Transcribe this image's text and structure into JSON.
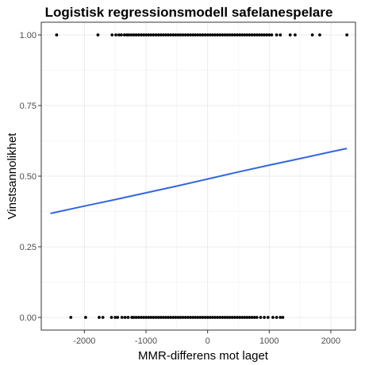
{
  "chart_data": {
    "type": "scatter",
    "title": "Logistisk regressionsmodell safelanespelare",
    "xlabel": "MMR-differens mot laget",
    "ylabel": "Vinstsannolikhet",
    "xlim": [
      -2700,
      2400
    ],
    "ylim": [
      -0.045,
      1.045
    ],
    "x_ticks": [
      -2000,
      -1000,
      0,
      1000,
      2000
    ],
    "x_tick_labels": [
      "-2000",
      "-1000",
      "0",
      "1000",
      "2000"
    ],
    "y_ticks": [
      0,
      0.25,
      0.5,
      0.75,
      1
    ],
    "y_tick_labels": [
      "0.00",
      "0.25",
      "0.50",
      "0.75",
      "1.00"
    ],
    "grid": true,
    "series": [
      {
        "type": "scatter",
        "color": "#000000",
        "points": [
          {
            "x": -2450,
            "y": 1
          },
          {
            "x": -1780,
            "y": 1
          },
          {
            "x": -1550,
            "y": 1
          },
          {
            "x": -1490,
            "y": 1
          },
          {
            "x": -1440,
            "y": 1
          },
          {
            "x": -1400,
            "y": 1
          },
          {
            "x": -1350,
            "y": 1
          },
          {
            "x": -1310,
            "y": 1
          },
          {
            "x": -1280,
            "y": 1
          },
          {
            "x": -1240,
            "y": 1
          },
          {
            "x": -1200,
            "y": 1
          },
          {
            "x": -1160,
            "y": 1
          },
          {
            "x": -1120,
            "y": 1
          },
          {
            "x": -1080,
            "y": 1
          },
          {
            "x": -1040,
            "y": 1
          },
          {
            "x": -1000,
            "y": 1
          },
          {
            "x": -960,
            "y": 1
          },
          {
            "x": -920,
            "y": 1
          },
          {
            "x": -880,
            "y": 1
          },
          {
            "x": -840,
            "y": 1
          },
          {
            "x": -800,
            "y": 1
          },
          {
            "x": -760,
            "y": 1
          },
          {
            "x": -720,
            "y": 1
          },
          {
            "x": -680,
            "y": 1
          },
          {
            "x": -640,
            "y": 1
          },
          {
            "x": -600,
            "y": 1
          },
          {
            "x": -560,
            "y": 1
          },
          {
            "x": -520,
            "y": 1
          },
          {
            "x": -480,
            "y": 1
          },
          {
            "x": -440,
            "y": 1
          },
          {
            "x": -400,
            "y": 1
          },
          {
            "x": -360,
            "y": 1
          },
          {
            "x": -320,
            "y": 1
          },
          {
            "x": -280,
            "y": 1
          },
          {
            "x": -240,
            "y": 1
          },
          {
            "x": -200,
            "y": 1
          },
          {
            "x": -160,
            "y": 1
          },
          {
            "x": -120,
            "y": 1
          },
          {
            "x": -80,
            "y": 1
          },
          {
            "x": -40,
            "y": 1
          },
          {
            "x": 0,
            "y": 1
          },
          {
            "x": 40,
            "y": 1
          },
          {
            "x": 80,
            "y": 1
          },
          {
            "x": 120,
            "y": 1
          },
          {
            "x": 160,
            "y": 1
          },
          {
            "x": 200,
            "y": 1
          },
          {
            "x": 240,
            "y": 1
          },
          {
            "x": 280,
            "y": 1
          },
          {
            "x": 320,
            "y": 1
          },
          {
            "x": 360,
            "y": 1
          },
          {
            "x": 400,
            "y": 1
          },
          {
            "x": 440,
            "y": 1
          },
          {
            "x": 480,
            "y": 1
          },
          {
            "x": 520,
            "y": 1
          },
          {
            "x": 560,
            "y": 1
          },
          {
            "x": 600,
            "y": 1
          },
          {
            "x": 640,
            "y": 1
          },
          {
            "x": 680,
            "y": 1
          },
          {
            "x": 720,
            "y": 1
          },
          {
            "x": 760,
            "y": 1
          },
          {
            "x": 800,
            "y": 1
          },
          {
            "x": 840,
            "y": 1
          },
          {
            "x": 880,
            "y": 1
          },
          {
            "x": 920,
            "y": 1
          },
          {
            "x": 960,
            "y": 1
          },
          {
            "x": 1000,
            "y": 1
          },
          {
            "x": 1040,
            "y": 1
          },
          {
            "x": 1120,
            "y": 1
          },
          {
            "x": 1180,
            "y": 1
          },
          {
            "x": 1340,
            "y": 1
          },
          {
            "x": 1420,
            "y": 1
          },
          {
            "x": 1700,
            "y": 1
          },
          {
            "x": 1820,
            "y": 1
          },
          {
            "x": 2260,
            "y": 1
          },
          {
            "x": -2220,
            "y": 0
          },
          {
            "x": -1980,
            "y": 0
          },
          {
            "x": -1760,
            "y": 0
          },
          {
            "x": -1700,
            "y": 0
          },
          {
            "x": -1560,
            "y": 0
          },
          {
            "x": -1500,
            "y": 0
          },
          {
            "x": -1460,
            "y": 0
          },
          {
            "x": -1390,
            "y": 0
          },
          {
            "x": -1340,
            "y": 0
          },
          {
            "x": -1290,
            "y": 0
          },
          {
            "x": -1230,
            "y": 0
          },
          {
            "x": -1200,
            "y": 0
          },
          {
            "x": -1160,
            "y": 0
          },
          {
            "x": -1120,
            "y": 0
          },
          {
            "x": -1080,
            "y": 0
          },
          {
            "x": -1040,
            "y": 0
          },
          {
            "x": -1000,
            "y": 0
          },
          {
            "x": -960,
            "y": 0
          },
          {
            "x": -920,
            "y": 0
          },
          {
            "x": -880,
            "y": 0
          },
          {
            "x": -840,
            "y": 0
          },
          {
            "x": -800,
            "y": 0
          },
          {
            "x": -760,
            "y": 0
          },
          {
            "x": -720,
            "y": 0
          },
          {
            "x": -680,
            "y": 0
          },
          {
            "x": -640,
            "y": 0
          },
          {
            "x": -600,
            "y": 0
          },
          {
            "x": -560,
            "y": 0
          },
          {
            "x": -520,
            "y": 0
          },
          {
            "x": -480,
            "y": 0
          },
          {
            "x": -440,
            "y": 0
          },
          {
            "x": -400,
            "y": 0
          },
          {
            "x": -360,
            "y": 0
          },
          {
            "x": -320,
            "y": 0
          },
          {
            "x": -280,
            "y": 0
          },
          {
            "x": -240,
            "y": 0
          },
          {
            "x": -200,
            "y": 0
          },
          {
            "x": -160,
            "y": 0
          },
          {
            "x": -120,
            "y": 0
          },
          {
            "x": -80,
            "y": 0
          },
          {
            "x": -40,
            "y": 0
          },
          {
            "x": 0,
            "y": 0
          },
          {
            "x": 40,
            "y": 0
          },
          {
            "x": 80,
            "y": 0
          },
          {
            "x": 120,
            "y": 0
          },
          {
            "x": 160,
            "y": 0
          },
          {
            "x": 200,
            "y": 0
          },
          {
            "x": 240,
            "y": 0
          },
          {
            "x": 280,
            "y": 0
          },
          {
            "x": 320,
            "y": 0
          },
          {
            "x": 360,
            "y": 0
          },
          {
            "x": 400,
            "y": 0
          },
          {
            "x": 440,
            "y": 0
          },
          {
            "x": 480,
            "y": 0
          },
          {
            "x": 520,
            "y": 0
          },
          {
            "x": 560,
            "y": 0
          },
          {
            "x": 600,
            "y": 0
          },
          {
            "x": 640,
            "y": 0
          },
          {
            "x": 680,
            "y": 0
          },
          {
            "x": 720,
            "y": 0
          },
          {
            "x": 760,
            "y": 0
          },
          {
            "x": 800,
            "y": 0
          },
          {
            "x": 860,
            "y": 0
          },
          {
            "x": 920,
            "y": 0
          },
          {
            "x": 980,
            "y": 0
          },
          {
            "x": 1060,
            "y": 0
          },
          {
            "x": 1120,
            "y": 0
          },
          {
            "x": 1180,
            "y": 0
          },
          {
            "x": 1220,
            "y": 0
          }
        ]
      },
      {
        "type": "line",
        "color": "#3366dd",
        "x": [
          -2550,
          -2000,
          -1500,
          -1000,
          -500,
          0,
          500,
          1000,
          1500,
          2000,
          2260
        ],
        "y": [
          0.368,
          0.394,
          0.417,
          0.441,
          0.465,
          0.49,
          0.515,
          0.539,
          0.562,
          0.586,
          0.598
        ]
      }
    ]
  }
}
